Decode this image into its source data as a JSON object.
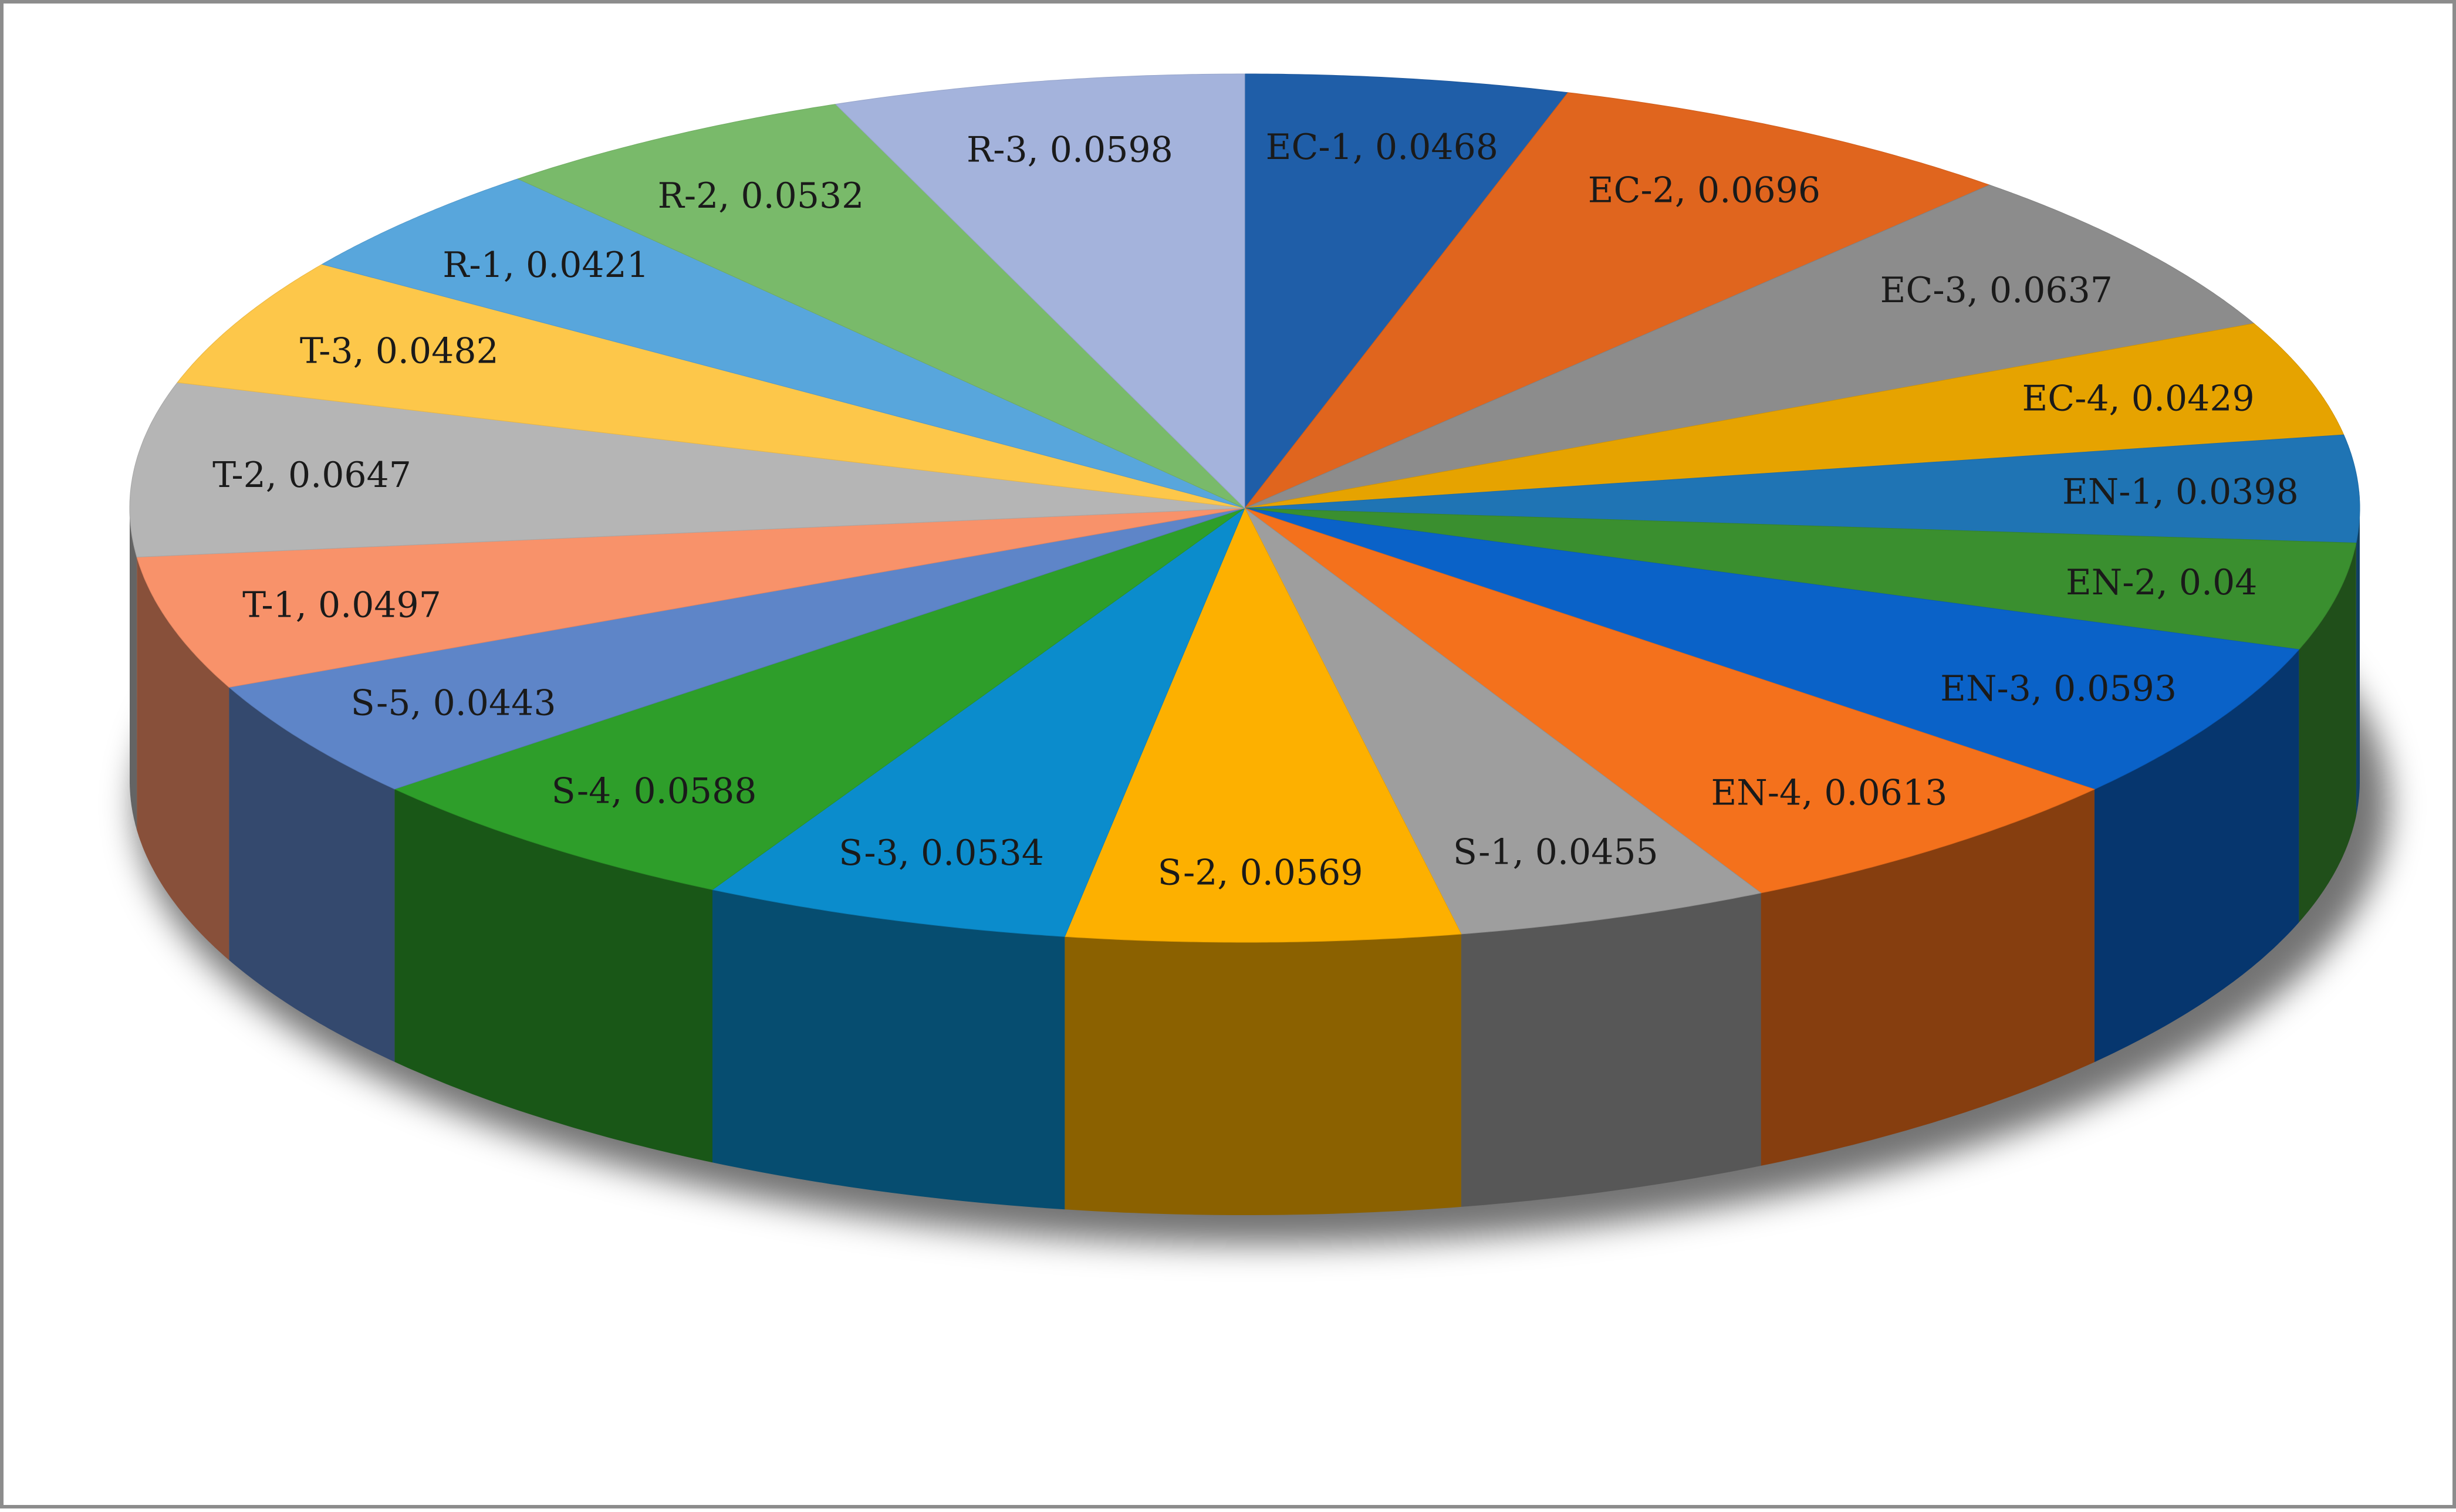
{
  "chart_data": {
    "type": "pie",
    "style": "3d",
    "legend": "none",
    "categories": [
      "EC-1",
      "EC-2",
      "EC-3",
      "EC-4",
      "EN-1",
      "EN-2",
      "EN-3",
      "EN-4",
      "S-1",
      "S-2",
      "S-3",
      "S-4",
      "S-5",
      "T-1",
      "T-2",
      "T-3",
      "R-1",
      "R-2",
      "R-3"
    ],
    "values": [
      0.0468,
      0.0696,
      0.0637,
      0.0429,
      0.0398,
      0.04,
      0.0593,
      0.0613,
      0.0455,
      0.0569,
      0.0534,
      0.0588,
      0.0443,
      0.0497,
      0.0647,
      0.0482,
      0.0421,
      0.0532,
      0.0598
    ],
    "labels": [
      "EC-1, 0.0468",
      "EC-2, 0.0696",
      "EC-3, 0.0637",
      "EC-4, 0.0429",
      "EN-1, 0.0398",
      "EN-2, 0.04",
      "EN-3, 0.0593",
      "EN-4, 0.0613",
      "S-1, 0.0455",
      "S-2, 0.0569",
      "S-3, 0.0534",
      "S-4, 0.0588",
      "S-5, 0.0443",
      "T-1, 0.0497",
      "T-2, 0.0647",
      "T-3, 0.0482",
      "R-1, 0.0421",
      "R-2, 0.0532",
      "R-3, 0.0598"
    ],
    "colors": [
      "#1f5ea8",
      "#e0651e",
      "#8c8c8c",
      "#e6a300",
      "#1f74b4",
      "#3a8f2f",
      "#0a62c8",
      "#f4711c",
      "#9e9e9e",
      "#fdb000",
      "#0b8ccc",
      "#2e9e2a",
      "#5e85c8",
      "#f8926a",
      "#b5b5b5",
      "#fdc74a",
      "#58a6dc",
      "#79ba6a",
      "#a4b3dc"
    ]
  }
}
